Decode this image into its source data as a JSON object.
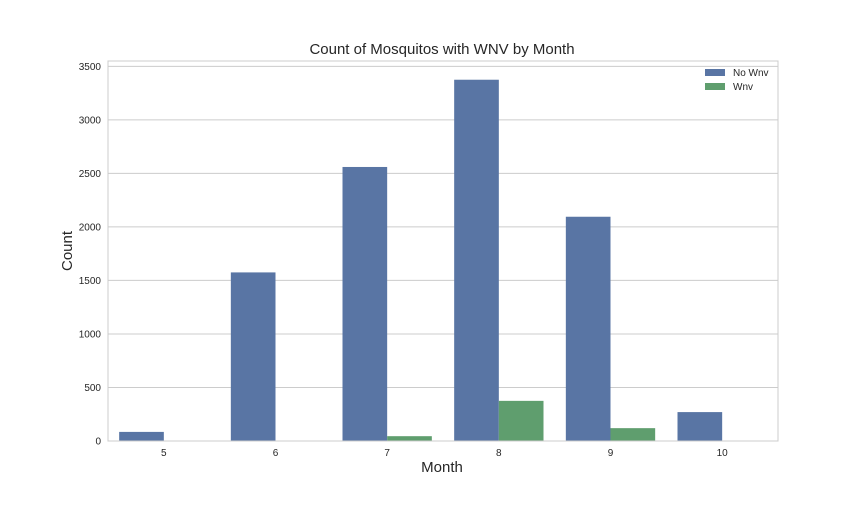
{
  "chart_data": {
    "type": "bar",
    "title": "Count of Mosquitos with WNV by Month",
    "xlabel": "Month",
    "ylabel": "Count",
    "categories": [
      "5",
      "6",
      "7",
      "8",
      "9",
      "10"
    ],
    "series": [
      {
        "name": "No Wnv",
        "color": "#5975a4",
        "values": [
          85,
          1575,
          2560,
          3375,
          2095,
          270
        ]
      },
      {
        "name": "Wnv",
        "color": "#5f9e6e",
        "values": [
          0,
          0,
          45,
          375,
          120,
          0
        ]
      }
    ],
    "ylim": [
      0,
      3550
    ],
    "yticks": [
      0,
      500,
      1000,
      1500,
      2000,
      2500,
      3000,
      3500
    ],
    "grid": true,
    "legend_position": "top-right"
  }
}
